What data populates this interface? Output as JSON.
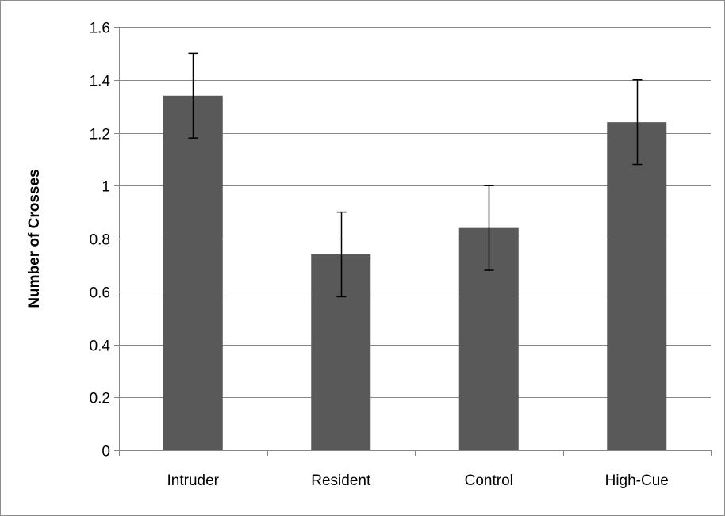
{
  "chart_data": {
    "type": "bar",
    "title": "",
    "xlabel": "",
    "ylabel": "Number of Crosses",
    "categories": [
      "Intruder",
      "Resident",
      "Control",
      "High-Cue"
    ],
    "values": [
      1.34,
      0.74,
      0.84,
      1.24
    ],
    "error_bars": [
      [
        1.18,
        1.5
      ],
      [
        0.58,
        0.9
      ],
      [
        0.68,
        1.0
      ],
      [
        1.08,
        1.4
      ]
    ],
    "ylim": [
      0,
      1.6
    ],
    "yticks": [
      "0",
      "0.2",
      "0.4",
      "0.6",
      "0.8",
      "1",
      "1.2",
      "1.4",
      "1.6"
    ],
    "grid": true,
    "legend": "none",
    "bar_color": "#595959",
    "grid_color": "#868686",
    "error_bar_color": "#000000"
  }
}
